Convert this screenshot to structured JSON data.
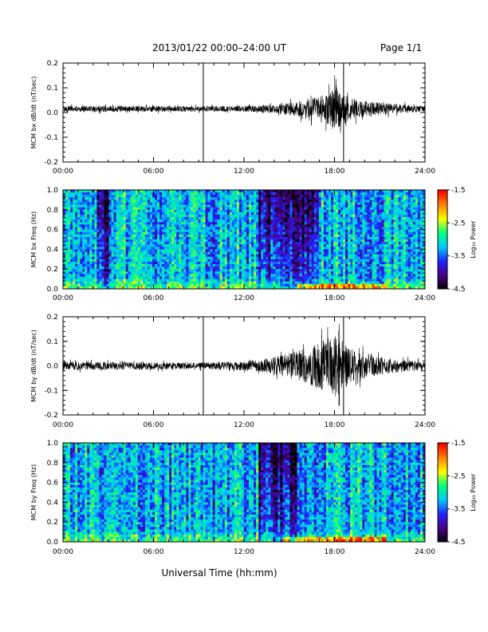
{
  "header": {
    "title": "2013/01/22  00:00–24:00 UT",
    "page": "Page 1/1"
  },
  "xlabel": "Universal Time (hh:mm)",
  "colors": {
    "trace": "#000000",
    "colormap": [
      "#000000",
      "#4b0082",
      "#2020ff",
      "#00c8ff",
      "#00ff80",
      "#ffff00",
      "#ff8000",
      "#ff0000"
    ]
  },
  "chart_data": [
    {
      "type": "line",
      "ylabel": "MCM bx dB/dt (nT/sec)",
      "xlim": [
        0,
        24
      ],
      "ylim": [
        -0.2,
        0.2
      ],
      "xticks": [
        "00:00",
        "06:00",
        "12:00",
        "18:00",
        "24:00"
      ],
      "yticks": [
        "0.2",
        "0.1",
        "0.0",
        "-0.1",
        "-0.2"
      ],
      "markers": [
        9.3,
        18.6
      ],
      "baseline": 0.015,
      "envelope": [
        {
          "x": 0,
          "amp": 0.012
        },
        {
          "x": 3,
          "amp": 0.013
        },
        {
          "x": 6,
          "amp": 0.012
        },
        {
          "x": 9,
          "amp": 0.011
        },
        {
          "x": 12,
          "amp": 0.012
        },
        {
          "x": 14,
          "amp": 0.018
        },
        {
          "x": 16,
          "amp": 0.035
        },
        {
          "x": 17.5,
          "amp": 0.06
        },
        {
          "x": 18,
          "amp": 0.09
        },
        {
          "x": 19,
          "amp": 0.045
        },
        {
          "x": 21,
          "amp": 0.025
        },
        {
          "x": 24,
          "amp": 0.012
        }
      ],
      "peak": {
        "x": 18.1,
        "max": 0.14,
        "min": -0.07
      }
    },
    {
      "type": "heatmap",
      "ylabel": "MCM bx Freq (Hz)",
      "xlim": [
        0,
        24
      ],
      "ylim": [
        0.0,
        1.0
      ],
      "xticks": [
        "00:00",
        "06:00",
        "12:00",
        "18:00",
        "24:00"
      ],
      "yticks": [
        "1.0",
        "0.8",
        "0.6",
        "0.4",
        "0.2",
        "0.0"
      ],
      "colorbar": {
        "label": "Log₁₀ Power",
        "range": [
          -4.5,
          -1.5
        ],
        "ticks": [
          "-1.5",
          "-2.5",
          "-3.5",
          "-4.5"
        ]
      },
      "dark_regions": [
        [
          2.2,
          3.0
        ],
        [
          13.0,
          17.0
        ]
      ],
      "low_freq_enhancement": [
        15.5,
        21.5
      ]
    },
    {
      "type": "line",
      "ylabel": "MCM by dB/dt (nT/sec)",
      "xlim": [
        0,
        24
      ],
      "ylim": [
        -0.2,
        0.2
      ],
      "xticks": [
        "00:00",
        "06:00",
        "12:00",
        "18:00",
        "24:00"
      ],
      "yticks": [
        "0.2",
        "0.1",
        "0.0",
        "-0.1",
        "-0.2"
      ],
      "markers": [
        9.3,
        18.6
      ],
      "baseline": 0.0,
      "envelope": [
        {
          "x": 0,
          "amp": 0.018
        },
        {
          "x": 3,
          "amp": 0.016
        },
        {
          "x": 6,
          "amp": 0.015
        },
        {
          "x": 9,
          "amp": 0.014
        },
        {
          "x": 12,
          "amp": 0.018
        },
        {
          "x": 14,
          "amp": 0.035
        },
        {
          "x": 16,
          "amp": 0.07
        },
        {
          "x": 17.5,
          "amp": 0.11
        },
        {
          "x": 18,
          "amp": 0.13
        },
        {
          "x": 19,
          "amp": 0.075
        },
        {
          "x": 21,
          "amp": 0.035
        },
        {
          "x": 24,
          "amp": 0.018
        }
      ],
      "peak": {
        "x": 18.3,
        "max": 0.18,
        "min": -0.18
      }
    },
    {
      "type": "heatmap",
      "ylabel": "MCM by Freq (Hz)",
      "xlim": [
        0,
        24
      ],
      "ylim": [
        0.0,
        1.0
      ],
      "xticks": [
        "00:00",
        "06:00",
        "12:00",
        "18:00",
        "24:00"
      ],
      "yticks": [
        "1.0",
        "0.8",
        "0.6",
        "0.4",
        "0.2",
        "0.0"
      ],
      "colorbar": {
        "label": "Log₁₀ Power",
        "range": [
          -4.5,
          -1.5
        ],
        "ticks": [
          "-1.5",
          "-2.5",
          "-3.5",
          "-4.5"
        ]
      },
      "dark_regions": [
        [
          13.0,
          15.5
        ]
      ],
      "low_freq_enhancement": [
        14.5,
        21.5
      ]
    }
  ]
}
